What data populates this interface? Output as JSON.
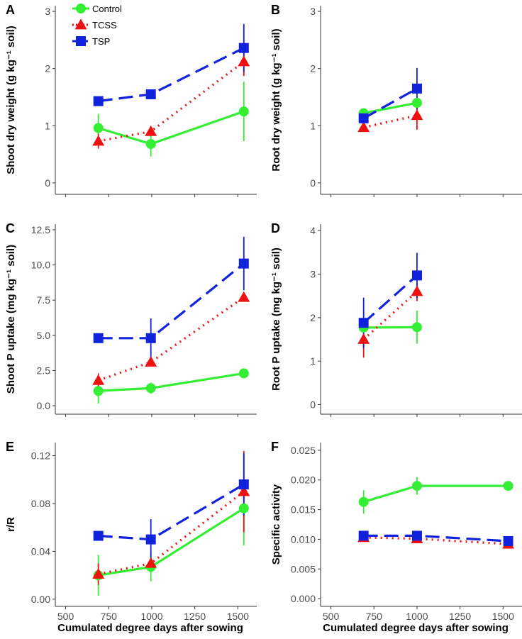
{
  "legend": {
    "entries": [
      {
        "name": "Control",
        "color": "#33ee33",
        "marker": "circle",
        "dash": "solid"
      },
      {
        "name": "TCSS",
        "color": "#ee1111",
        "marker": "triangle",
        "dash": "dotted"
      },
      {
        "name": "TSP",
        "color": "#1122dd",
        "marker": "square",
        "dash": "dashed"
      }
    ]
  },
  "chart_data": [
    {
      "panel": "A",
      "type": "line",
      "ylabel": "Shoot dry weight  (g kg⁻¹ soil)",
      "xlabel": "",
      "xlim": [
        440,
        1610
      ],
      "xticks": [
        500,
        750,
        1000,
        1250,
        1500
      ],
      "ylim": [
        -0.2,
        3.1
      ],
      "yticks": [
        0,
        1,
        2,
        3
      ],
      "ytick_labels": [
        "0",
        "1",
        "2",
        "3"
      ],
      "series": [
        {
          "name": "Control",
          "x": [
            690,
            995,
            1535
          ],
          "y": [
            0.96,
            0.68,
            1.25
          ],
          "err": [
            0.25,
            0.22,
            0.52
          ]
        },
        {
          "name": "TCSS",
          "x": [
            690,
            995,
            1535
          ],
          "y": [
            0.73,
            0.9,
            2.12
          ],
          "err": [
            0.13,
            0.05,
            0.25
          ]
        },
        {
          "name": "TSP",
          "x": [
            690,
            995,
            1535
          ],
          "y": [
            1.43,
            1.55,
            2.36
          ],
          "err": [
            0.05,
            0.04,
            0.42
          ]
        }
      ]
    },
    {
      "panel": "B",
      "type": "line",
      "ylabel": "Root dry weight  (g kg⁻¹ soil)",
      "xlabel": "",
      "xlim": [
        440,
        1610
      ],
      "xticks": [
        500,
        750,
        1000,
        1250,
        1500
      ],
      "ylim": [
        -0.2,
        3.1
      ],
      "yticks": [
        0,
        1,
        2,
        3
      ],
      "ytick_labels": [
        "0",
        "1",
        "2",
        "3"
      ],
      "series": [
        {
          "name": "Control",
          "x": [
            690,
            1000
          ],
          "y": [
            1.22,
            1.4
          ],
          "err": [
            0.05,
            0.07
          ]
        },
        {
          "name": "TCSS",
          "x": [
            690,
            1000
          ],
          "y": [
            0.97,
            1.18
          ],
          "err": [
            0.05,
            0.25
          ]
        },
        {
          "name": "TSP",
          "x": [
            690,
            1000
          ],
          "y": [
            1.13,
            1.65
          ],
          "err": [
            0.1,
            0.36
          ]
        }
      ]
    },
    {
      "panel": "C",
      "type": "line",
      "ylabel": "Shoot P uptake  (mg kg⁻¹ soil)",
      "xlabel": "",
      "xlim": [
        440,
        1610
      ],
      "xticks": [
        500,
        750,
        1000,
        1250,
        1500
      ],
      "ylim": [
        -0.6,
        12.9
      ],
      "yticks": [
        0,
        2.5,
        5,
        7.5,
        10,
        12.5
      ],
      "ytick_labels": [
        "0.0",
        "2.5",
        "5.0",
        "7.5",
        "10.0",
        "12.5"
      ],
      "series": [
        {
          "name": "Control",
          "x": [
            690,
            995,
            1535
          ],
          "y": [
            1.05,
            1.25,
            2.3
          ],
          "err": [
            0.9,
            0.4,
            0.1
          ]
        },
        {
          "name": "TCSS",
          "x": [
            690,
            995,
            1535
          ],
          "y": [
            1.8,
            3.1,
            7.7
          ],
          "err": [
            0.5,
            0.2,
            0.3
          ]
        },
        {
          "name": "TSP",
          "x": [
            690,
            995,
            1535
          ],
          "y": [
            4.8,
            4.8,
            10.1
          ],
          "err": [
            0.15,
            1.4,
            1.9
          ]
        }
      ]
    },
    {
      "panel": "D",
      "type": "line",
      "ylabel": "Root P uptake  (mg kg⁻¹ soil)",
      "xlabel": "",
      "xlim": [
        440,
        1610
      ],
      "xticks": [
        500,
        750,
        1000,
        1250,
        1500
      ],
      "ylim": [
        -0.22,
        4.15
      ],
      "yticks": [
        0,
        1,
        2,
        3,
        4
      ],
      "ytick_labels": [
        "0",
        "1",
        "2",
        "3",
        "4"
      ],
      "series": [
        {
          "name": "Control",
          "x": [
            690,
            1000
          ],
          "y": [
            1.77,
            1.78
          ],
          "err": [
            0.1,
            0.38
          ]
        },
        {
          "name": "TCSS",
          "x": [
            690,
            1000
          ],
          "y": [
            1.5,
            2.6
          ],
          "err": [
            0.42,
            0.22
          ]
        },
        {
          "name": "TSP",
          "x": [
            690,
            1000
          ],
          "y": [
            1.88,
            2.97
          ],
          "err": [
            0.58,
            0.52
          ]
        }
      ]
    },
    {
      "panel": "E",
      "type": "line",
      "ylabel": "r/R",
      "xlabel": "Cumulated degree days after sowing",
      "xlim": [
        440,
        1610
      ],
      "xticks": [
        500,
        750,
        1000,
        1250,
        1500
      ],
      "ylim": [
        -0.006,
        0.131
      ],
      "yticks": [
        0,
        0.04,
        0.08,
        0.12
      ],
      "ytick_labels": [
        "0.00",
        "0.04",
        "0.08",
        "0.12"
      ],
      "series": [
        {
          "name": "Control",
          "x": [
            690,
            995,
            1535
          ],
          "y": [
            0.02,
            0.027,
            0.076
          ],
          "err": [
            0.017,
            0.012,
            0.031
          ]
        },
        {
          "name": "TCSS",
          "x": [
            690,
            995,
            1535
          ],
          "y": [
            0.021,
            0.03,
            0.09
          ],
          "err": [
            0.009,
            0.004,
            0.034
          ]
        },
        {
          "name": "TSP",
          "x": [
            690,
            995,
            1535
          ],
          "y": [
            0.053,
            0.05,
            0.096
          ],
          "err": [
            0.002,
            0.017,
            0.026
          ]
        }
      ]
    },
    {
      "panel": "F",
      "type": "line",
      "ylabel": "Specific activity",
      "xlabel": "Cumulated degree days after sowing",
      "xlim": [
        440,
        1610
      ],
      "xticks": [
        500,
        750,
        1000,
        1250,
        1500
      ],
      "ylim": [
        -0.0013,
        0.0263
      ],
      "yticks": [
        0,
        0.005,
        0.01,
        0.015,
        0.02,
        0.025
      ],
      "ytick_labels": [
        "0.000",
        "0.005",
        "0.010",
        "0.015",
        "0.020",
        "0.025"
      ],
      "series": [
        {
          "name": "Control",
          "x": [
            690,
            1000,
            1530
          ],
          "y": [
            0.0163,
            0.019,
            0.019
          ],
          "err": [
            0.002,
            0.0015,
            0.0001
          ]
        },
        {
          "name": "TCSS",
          "x": [
            690,
            1000,
            1530
          ],
          "y": [
            0.0103,
            0.0101,
            0.0092
          ],
          "err": [
            0.0003,
            0.0004,
            0.0002
          ]
        },
        {
          "name": "TSP",
          "x": [
            690,
            1000,
            1530
          ],
          "y": [
            0.0106,
            0.0106,
            0.0097
          ],
          "err": [
            0.0003,
            0.0003,
            0.0002
          ]
        }
      ]
    }
  ]
}
